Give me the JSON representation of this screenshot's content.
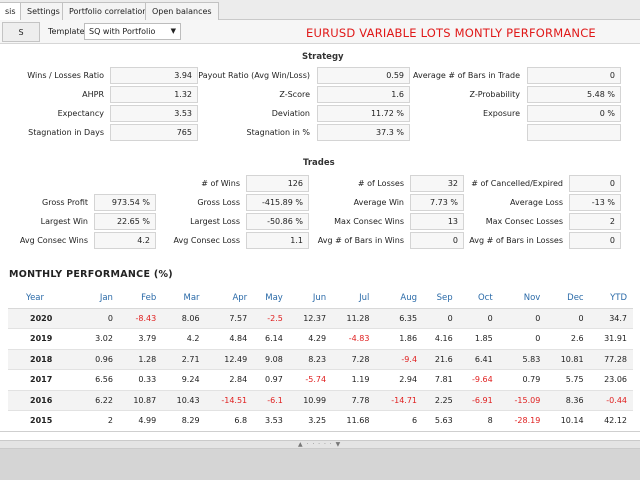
{
  "tabs": [
    {
      "label": "sis",
      "active": true
    },
    {
      "label": "Settings",
      "active": false
    },
    {
      "label": "Portfolio correlation",
      "active": false
    },
    {
      "label": "Open balances",
      "active": false
    }
  ],
  "toolbar": {
    "s_button": "S",
    "template_label": "Template",
    "template_value": "SQ with Portfolio",
    "dropdown_arrow": "▼"
  },
  "report_title": "EURUSD VARIABLE LOTS MONTLY PERFORMANCE",
  "strategy": {
    "title": "Strategy",
    "rows": [
      [
        {
          "label": "Wins / Losses Ratio",
          "value": "3.94"
        },
        {
          "label": "Payout Ratio (Avg Win/Loss)",
          "value": "0.59"
        },
        {
          "label": "Average # of Bars in Trade",
          "value": "0"
        }
      ],
      [
        {
          "label": "AHPR",
          "value": "1.32"
        },
        {
          "label": "Z-Score",
          "value": "1.6"
        },
        {
          "label": "Z-Probability",
          "value": "5.48 %"
        }
      ],
      [
        {
          "label": "Expectancy",
          "value": "3.53"
        },
        {
          "label": "Deviation",
          "value": "11.72 %"
        },
        {
          "label": "Exposure",
          "value": "0 %"
        }
      ],
      [
        {
          "label": "Stagnation in Days",
          "value": "765"
        },
        {
          "label": "Stagnation in %",
          "value": "37.3 %"
        },
        {
          "label": "",
          "value": ""
        }
      ]
    ]
  },
  "trades": {
    "title": "Trades",
    "rows": [
      [
        {
          "label": "",
          "value": ""
        },
        {
          "label": "# of Wins",
          "value": "126"
        },
        {
          "label": "# of Losses",
          "value": "32"
        },
        {
          "label": "# of Cancelled/Expired",
          "value": "0"
        }
      ],
      [
        {
          "label": "Gross Profit",
          "value": "973.54 %"
        },
        {
          "label": "Gross Loss",
          "value": "-415.89 %"
        },
        {
          "label": "Average Win",
          "value": "7.73 %"
        },
        {
          "label": "Average Loss",
          "value": "-13 %"
        }
      ],
      [
        {
          "label": "Largest Win",
          "value": "22.65 %"
        },
        {
          "label": "Largest Loss",
          "value": "-50.86 %"
        },
        {
          "label": "Max Consec Wins",
          "value": "13"
        },
        {
          "label": "Max Consec Losses",
          "value": "2"
        }
      ],
      [
        {
          "label": "Avg Consec Wins",
          "value": "4.2"
        },
        {
          "label": "Avg Consec Loss",
          "value": "1.1"
        },
        {
          "label": "Avg # of Bars in Wins",
          "value": "0"
        },
        {
          "label": "Avg # of Bars in Losses",
          "value": "0"
        }
      ]
    ]
  },
  "monthly": {
    "title": "MONTHLY PERFORMANCE (%)",
    "headers": [
      "Year",
      "Jan",
      "Feb",
      "Mar",
      "Apr",
      "May",
      "Jun",
      "Jul",
      "Aug",
      "Sep",
      "Oct",
      "Nov",
      "Dec",
      "YTD"
    ],
    "rows": [
      [
        "2020",
        "0",
        "-8.43",
        "8.06",
        "7.57",
        "-2.5",
        "12.37",
        "11.28",
        "6.35",
        "0",
        "0",
        "0",
        "0",
        "34.7"
      ],
      [
        "2019",
        "3.02",
        "3.79",
        "4.2",
        "4.84",
        "6.14",
        "4.29",
        "-4.83",
        "1.86",
        "4.16",
        "1.85",
        "0",
        "2.6",
        "31.91"
      ],
      [
        "2018",
        "0.96",
        "1.28",
        "2.71",
        "12.49",
        "9.08",
        "8.23",
        "7.28",
        "-9.4",
        "21.6",
        "6.41",
        "5.83",
        "10.81",
        "77.28"
      ],
      [
        "2017",
        "6.56",
        "0.33",
        "9.24",
        "2.84",
        "0.97",
        "-5.74",
        "1.19",
        "2.94",
        "7.81",
        "-9.64",
        "0.79",
        "5.75",
        "23.06"
      ],
      [
        "2016",
        "6.22",
        "10.87",
        "10.43",
        "-14.51",
        "-6.1",
        "10.99",
        "7.78",
        "-14.71",
        "2.25",
        "-6.91",
        "-15.09",
        "8.36",
        "-0.44"
      ],
      [
        "2015",
        "2",
        "4.99",
        "8.29",
        "6.8",
        "3.53",
        "3.25",
        "11.68",
        "6",
        "5.63",
        "8",
        "-28.19",
        "10.14",
        "42.12"
      ]
    ]
  },
  "splitter_grip": "▲ · · · · · ▼",
  "colors": {
    "accent_blue": "#2a6aa8",
    "negative_red": "#e02020",
    "title_red": "#e01818"
  }
}
